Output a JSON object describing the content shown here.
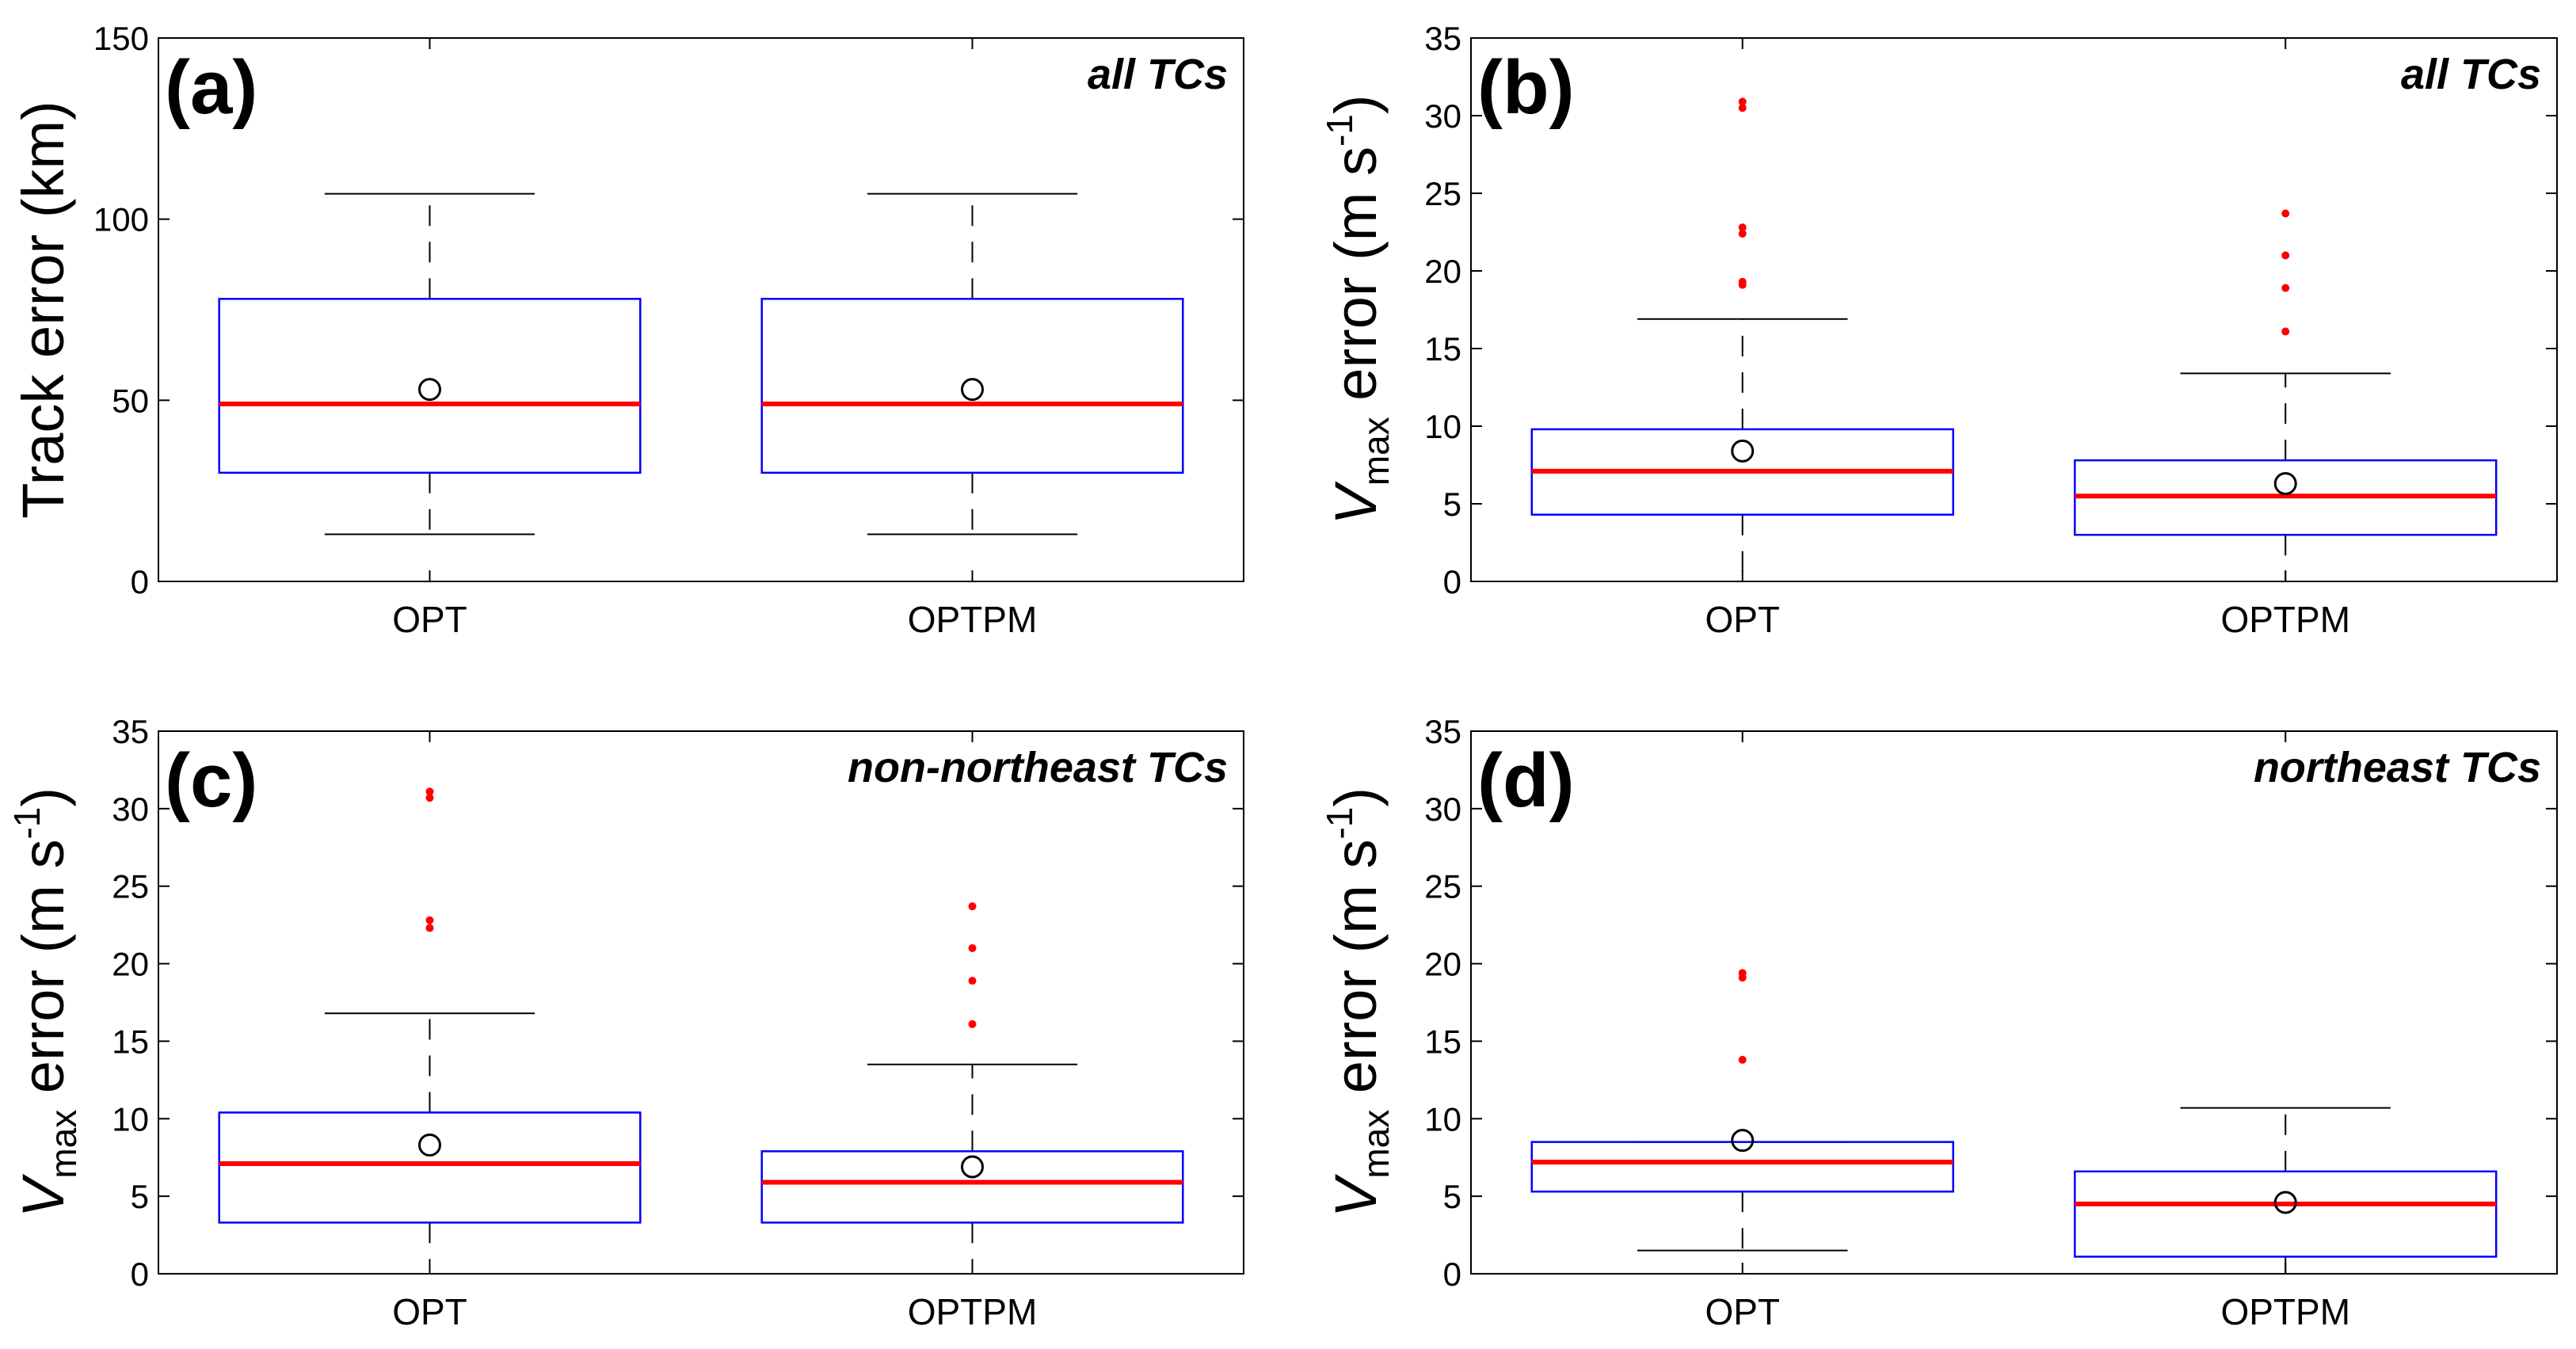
{
  "chart_data": [
    {
      "type": "box",
      "panel_label": "(a)",
      "subset_label": "all TCs",
      "ylabel": "Track error (km)",
      "ylim": [
        0,
        150
      ],
      "yticks": [
        0,
        50,
        100,
        150
      ],
      "categories": [
        "OPT",
        "OPTPM"
      ],
      "boxes": [
        {
          "q1": 30,
          "median": 49,
          "q3": 78,
          "whisker_low": 13,
          "whisker_high": 107,
          "mean": 53,
          "outliers": []
        },
        {
          "q1": 30,
          "median": 49,
          "q3": 78,
          "whisker_low": 13,
          "whisker_high": 107,
          "mean": 53,
          "outliers": []
        }
      ]
    },
    {
      "type": "box",
      "panel_label": "(b)",
      "subset_label": "all TCs",
      "ylabel": {
        "var": "V",
        "sub": "max",
        "mid": " error (m s",
        "sup": "-1",
        "end": ")"
      },
      "ylim": [
        0,
        35
      ],
      "yticks": [
        0,
        5,
        10,
        15,
        20,
        25,
        30,
        35
      ],
      "categories": [
        "OPT",
        "OPTPM"
      ],
      "boxes": [
        {
          "q1": 4.3,
          "median": 7.1,
          "q3": 9.8,
          "whisker_low": 0,
          "whisker_high": 16.9,
          "mean": 8.4,
          "outliers": [
            19.1,
            19.3,
            22.4,
            22.8,
            30.5,
            30.9
          ]
        },
        {
          "q1": 3.0,
          "median": 5.5,
          "q3": 7.8,
          "whisker_low": 0,
          "whisker_high": 13.4,
          "mean": 6.3,
          "outliers": [
            16.1,
            18.9,
            21.0,
            23.7
          ]
        }
      ]
    },
    {
      "type": "box",
      "panel_label": "(c)",
      "subset_label": "non-northeast TCs",
      "ylabel": {
        "var": "V",
        "sub": "max",
        "mid": " error (m s",
        "sup": "-1",
        "end": ")"
      },
      "ylim": [
        0,
        35
      ],
      "yticks": [
        0,
        5,
        10,
        15,
        20,
        25,
        30,
        35
      ],
      "categories": [
        "OPT",
        "OPTPM"
      ],
      "boxes": [
        {
          "q1": 3.3,
          "median": 7.1,
          "q3": 10.4,
          "whisker_low": 0,
          "whisker_high": 16.8,
          "mean": 8.3,
          "outliers": [
            22.3,
            22.8,
            30.7,
            31.1
          ]
        },
        {
          "q1": 3.3,
          "median": 5.9,
          "q3": 7.9,
          "whisker_low": 0,
          "whisker_high": 13.5,
          "mean": 6.9,
          "outliers": [
            16.1,
            18.9,
            21.0,
            23.7
          ]
        }
      ]
    },
    {
      "type": "box",
      "panel_label": "(d)",
      "subset_label": "northeast TCs",
      "ylabel": {
        "var": "V",
        "sub": "max",
        "mid": " error (m s",
        "sup": "-1",
        "end": ")"
      },
      "ylim": [
        0,
        35
      ],
      "yticks": [
        0,
        5,
        10,
        15,
        20,
        25,
        30,
        35
      ],
      "categories": [
        "OPT",
        "OPTPM"
      ],
      "boxes": [
        {
          "q1": 5.3,
          "median": 7.2,
          "q3": 8.5,
          "whisker_low": 1.5,
          "whisker_high": 8.5,
          "mean": 8.6,
          "outliers": [
            13.8,
            19.1,
            19.4
          ]
        },
        {
          "q1": 1.1,
          "median": 4.5,
          "q3": 6.6,
          "whisker_low": 0,
          "whisker_high": 10.7,
          "mean": 4.6,
          "outliers": []
        }
      ]
    }
  ],
  "colors": {
    "box": "#0000ff",
    "median": "#ff0000",
    "outlier": "#ff0000",
    "whisker": "#000000",
    "mean_marker": "#000000"
  }
}
